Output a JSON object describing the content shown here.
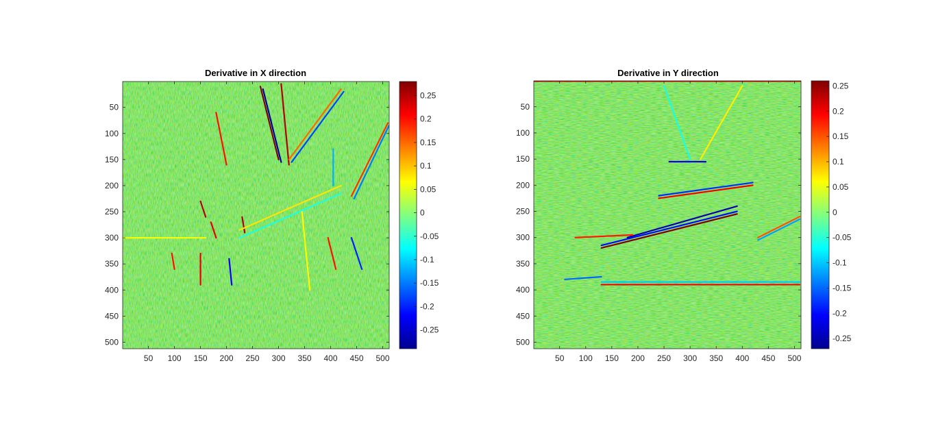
{
  "chart_data": [
    {
      "type": "heatmap",
      "title": "Derivative in X direction",
      "xlabel": "",
      "ylabel": "",
      "colormap": "jet",
      "xlim": [
        0.5,
        512.5
      ],
      "ylim": [
        0.5,
        512.5
      ],
      "y_reversed": true,
      "xticks": [
        50,
        100,
        150,
        200,
        250,
        300,
        350,
        400,
        450,
        500
      ],
      "yticks": [
        50,
        100,
        150,
        200,
        250,
        300,
        350,
        400,
        450,
        500
      ],
      "clim": [
        -0.29,
        0.28
      ],
      "colorbar_ticks": [
        0.25,
        0.2,
        0.15,
        0.1,
        0.05,
        0,
        -0.05,
        -0.1,
        -0.15,
        -0.2,
        -0.25
      ],
      "background_value": 0,
      "features": [
        {
          "kind": "line",
          "x1": 265,
          "y1": 10,
          "x2": 300,
          "y2": 150,
          "value": 0.28
        },
        {
          "kind": "line",
          "x1": 270,
          "y1": 15,
          "x2": 305,
          "y2": 155,
          "value": -0.28
        },
        {
          "kind": "line",
          "x1": 305,
          "y1": 5,
          "x2": 320,
          "y2": 160,
          "value": 0.25
        },
        {
          "kind": "line",
          "x1": 320,
          "y1": 150,
          "x2": 420,
          "y2": 15,
          "value": 0.15
        },
        {
          "kind": "line",
          "x1": 325,
          "y1": 155,
          "x2": 425,
          "y2": 20,
          "value": -0.18
        },
        {
          "kind": "line",
          "x1": 440,
          "y1": 220,
          "x2": 510,
          "y2": 80,
          "value": 0.18
        },
        {
          "kind": "line",
          "x1": 445,
          "y1": 225,
          "x2": 512,
          "y2": 85,
          "value": -0.15
        },
        {
          "kind": "line",
          "x1": 180,
          "y1": 60,
          "x2": 200,
          "y2": 160,
          "value": 0.2
        },
        {
          "kind": "line",
          "x1": 150,
          "y1": 230,
          "x2": 160,
          "y2": 260,
          "value": 0.25
        },
        {
          "kind": "line",
          "x1": 170,
          "y1": 270,
          "x2": 180,
          "y2": 300,
          "value": 0.22
        },
        {
          "kind": "line",
          "x1": 230,
          "y1": 260,
          "x2": 235,
          "y2": 290,
          "value": 0.25
        },
        {
          "kind": "line",
          "x1": 95,
          "y1": 330,
          "x2": 100,
          "y2": 360,
          "value": 0.2
        },
        {
          "kind": "line",
          "x1": 150,
          "y1": 330,
          "x2": 150,
          "y2": 390,
          "value": 0.22
        },
        {
          "kind": "line",
          "x1": 205,
          "y1": 340,
          "x2": 210,
          "y2": 390,
          "value": -0.22
        },
        {
          "kind": "line",
          "x1": 395,
          "y1": 300,
          "x2": 410,
          "y2": 360,
          "value": 0.2
        },
        {
          "kind": "line",
          "x1": 440,
          "y1": 300,
          "x2": 460,
          "y2": 360,
          "value": -0.2
        },
        {
          "kind": "line",
          "x1": 225,
          "y1": 285,
          "x2": 420,
          "y2": 200,
          "value": 0.08
        },
        {
          "kind": "line",
          "x1": 225,
          "y1": 300,
          "x2": 420,
          "y2": 215,
          "value": -0.06
        },
        {
          "kind": "line",
          "x1": 0,
          "y1": 300,
          "x2": 160,
          "y2": 300,
          "value": 0.06
        },
        {
          "kind": "line",
          "x1": 405,
          "y1": 130,
          "x2": 405,
          "y2": 200,
          "value": -0.12
        },
        {
          "kind": "line",
          "x1": 345,
          "y1": 250,
          "x2": 360,
          "y2": 400,
          "value": 0.07
        }
      ]
    },
    {
      "type": "heatmap",
      "title": "Derivative in Y direction",
      "xlabel": "",
      "ylabel": "",
      "colormap": "jet",
      "xlim": [
        0.5,
        512.5
      ],
      "ylim": [
        0.5,
        512.5
      ],
      "y_reversed": true,
      "xticks": [
        50,
        100,
        150,
        200,
        250,
        300,
        350,
        400,
        450,
        500
      ],
      "yticks": [
        50,
        100,
        150,
        200,
        250,
        300,
        350,
        400,
        450,
        500
      ],
      "clim": [
        -0.27,
        0.26
      ],
      "colorbar_ticks": [
        0.25,
        0.2,
        0.15,
        0.1,
        0.05,
        0,
        -0.05,
        -0.1,
        -0.15,
        -0.2,
        -0.25
      ],
      "background_value": 0,
      "features": [
        {
          "kind": "line",
          "x1": 130,
          "y1": 320,
          "x2": 390,
          "y2": 255,
          "value": 0.26
        },
        {
          "kind": "line",
          "x1": 130,
          "y1": 315,
          "x2": 390,
          "y2": 250,
          "value": -0.2
        },
        {
          "kind": "line",
          "x1": 180,
          "y1": 300,
          "x2": 390,
          "y2": 240,
          "value": -0.25
        },
        {
          "kind": "line",
          "x1": 240,
          "y1": 225,
          "x2": 420,
          "y2": 200,
          "value": 0.2
        },
        {
          "kind": "line",
          "x1": 240,
          "y1": 220,
          "x2": 420,
          "y2": 195,
          "value": -0.18
        },
        {
          "kind": "line",
          "x1": 80,
          "y1": 300,
          "x2": 190,
          "y2": 295,
          "value": 0.18
        },
        {
          "kind": "line",
          "x1": 130,
          "y1": 390,
          "x2": 510,
          "y2": 390,
          "value": 0.2
        },
        {
          "kind": "line",
          "x1": 130,
          "y1": 385,
          "x2": 510,
          "y2": 385,
          "value": -0.1
        },
        {
          "kind": "line",
          "x1": 60,
          "y1": 380,
          "x2": 130,
          "y2": 375,
          "value": -0.15
        },
        {
          "kind": "line",
          "x1": 260,
          "y1": 155,
          "x2": 330,
          "y2": 155,
          "value": -0.22
        },
        {
          "kind": "line",
          "x1": 320,
          "y1": 150,
          "x2": 400,
          "y2": 10,
          "value": 0.07
        },
        {
          "kind": "line",
          "x1": 250,
          "y1": 10,
          "x2": 300,
          "y2": 150,
          "value": -0.06
        },
        {
          "kind": "line",
          "x1": 0,
          "y1": 1,
          "x2": 512,
          "y2": 1,
          "value": 0.22
        },
        {
          "kind": "line",
          "x1": 430,
          "y1": 300,
          "x2": 510,
          "y2": 260,
          "value": 0.15
        },
        {
          "kind": "line",
          "x1": 430,
          "y1": 305,
          "x2": 510,
          "y2": 265,
          "value": -0.12
        }
      ]
    }
  ]
}
